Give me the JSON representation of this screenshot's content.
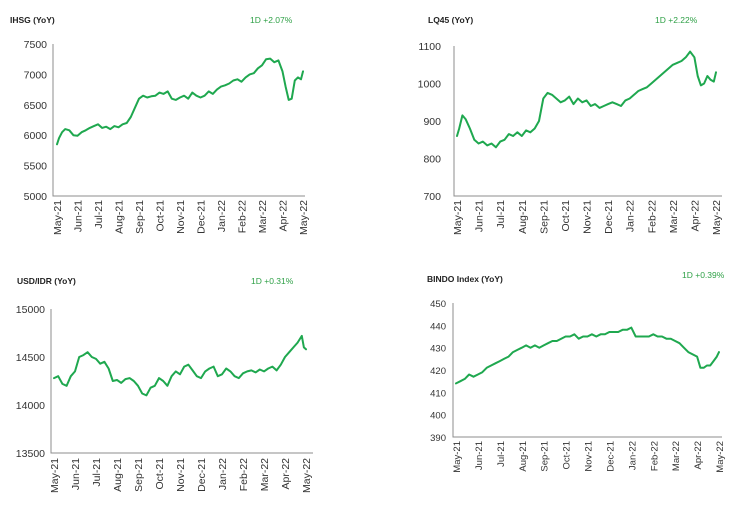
{
  "chart_data": [
    {
      "type": "line",
      "title": "IHSG (YoY)",
      "change_label": "1D +2.07%",
      "xlabel": "",
      "ylabel": "",
      "ylim": [
        5000,
        7500
      ],
      "yticks": [
        "7500",
        "7000",
        "6500",
        "6000",
        "5500",
        "5000"
      ],
      "yticks_values": [
        7500,
        7000,
        6500,
        6000,
        5500,
        5000
      ],
      "categories": [
        "May-21",
        "Jun-21",
        "Jul-21",
        "Aug-21",
        "Sep-21",
        "Oct-21",
        "Nov-21",
        "Dec-21",
        "Jan-22",
        "Feb-22",
        "Mar-22",
        "Apr-22",
        "May-22"
      ],
      "color": "#1fa84f",
      "grid": false,
      "series": [
        {
          "x": [
            0,
            0.1,
            0.25,
            0.4,
            0.6,
            0.8,
            1.0,
            1.2,
            1.4,
            1.6,
            1.8,
            2.0,
            2.2,
            2.4,
            2.6,
            2.8,
            3.0,
            3.2,
            3.4,
            3.6,
            3.8,
            4.0,
            4.2,
            4.4,
            4.6,
            4.8,
            5.0,
            5.2,
            5.4,
            5.6,
            5.8,
            6.0,
            6.2,
            6.4,
            6.6,
            6.8,
            7.0,
            7.2,
            7.4,
            7.6,
            7.8,
            8.0,
            8.2,
            8.4,
            8.6,
            8.8,
            9.0,
            9.2,
            9.4,
            9.6,
            9.8,
            10.0,
            10.2,
            10.4,
            10.6,
            10.8,
            11.0,
            11.15,
            11.3,
            11.45,
            11.6,
            11.75,
            11.9,
            12.0
          ],
          "values": [
            5850,
            5950,
            6050,
            6100,
            6080,
            6000,
            5990,
            6050,
            6080,
            6120,
            6150,
            6180,
            6120,
            6140,
            6100,
            6150,
            6130,
            6180,
            6200,
            6300,
            6450,
            6600,
            6650,
            6620,
            6640,
            6650,
            6700,
            6680,
            6720,
            6600,
            6580,
            6620,
            6650,
            6600,
            6700,
            6650,
            6620,
            6650,
            6720,
            6680,
            6750,
            6800,
            6820,
            6850,
            6900,
            6920,
            6880,
            6950,
            7000,
            7020,
            7100,
            7150,
            7250,
            7260,
            7200,
            7230,
            7050,
            6800,
            6580,
            6600,
            6900,
            6950,
            6920,
            7050
          ]
        }
      ]
    },
    {
      "type": "line",
      "title": "LQ45 (YoY)",
      "change_label": "1D +2.22%",
      "xlabel": "",
      "ylabel": "",
      "ylim": [
        700,
        1100
      ],
      "yticks": [
        "1100",
        "1000",
        "900",
        "800",
        "700"
      ],
      "yticks_values": [
        1100,
        1000,
        900,
        800,
        700
      ],
      "categories": [
        "May-21",
        "Jun-21",
        "Jul-21",
        "Aug-21",
        "Sep-21",
        "Oct-21",
        "Nov-21",
        "Dec-21",
        "Jan-22",
        "Feb-22",
        "Mar-22",
        "Apr-22",
        "May-22"
      ],
      "color": "#1fa84f",
      "grid": false,
      "series": [
        {
          "x": [
            0,
            0.1,
            0.25,
            0.4,
            0.6,
            0.8,
            1.0,
            1.2,
            1.4,
            1.6,
            1.8,
            2.0,
            2.2,
            2.4,
            2.6,
            2.8,
            3.0,
            3.2,
            3.4,
            3.6,
            3.8,
            4.0,
            4.2,
            4.4,
            4.6,
            4.8,
            5.0,
            5.2,
            5.4,
            5.6,
            5.8,
            6.0,
            6.2,
            6.4,
            6.6,
            6.8,
            7.0,
            7.2,
            7.4,
            7.6,
            7.8,
            8.0,
            8.2,
            8.4,
            8.6,
            8.8,
            9.0,
            9.2,
            9.4,
            9.6,
            9.8,
            10.0,
            10.2,
            10.4,
            10.6,
            10.8,
            11.0,
            11.15,
            11.3,
            11.45,
            11.6,
            11.75,
            11.9,
            12.0
          ],
          "values": [
            860,
            880,
            915,
            905,
            880,
            850,
            840,
            845,
            835,
            840,
            830,
            845,
            850,
            865,
            860,
            870,
            860,
            875,
            870,
            880,
            900,
            960,
            975,
            970,
            960,
            950,
            955,
            965,
            945,
            960,
            950,
            955,
            940,
            945,
            935,
            940,
            945,
            950,
            945,
            940,
            955,
            960,
            970,
            980,
            985,
            990,
            1000,
            1010,
            1020,
            1030,
            1040,
            1050,
            1055,
            1060,
            1070,
            1085,
            1070,
            1020,
            995,
            1000,
            1020,
            1010,
            1005,
            1030
          ]
        }
      ]
    },
    {
      "type": "line",
      "title": "USD/IDR  (YoY)",
      "change_label": "1D +0.31%",
      "xlabel": "",
      "ylabel": "",
      "ylim": [
        13500,
        15000
      ],
      "yticks": [
        "15000",
        "14500",
        "14000",
        "13500"
      ],
      "yticks_values": [
        15000,
        14500,
        14000,
        13500
      ],
      "categories": [
        "May-21",
        "Jun-21",
        "Jul-21",
        "Aug-21",
        "Sep-21",
        "Oct-21",
        "Nov-21",
        "Dec-21",
        "Jan-22",
        "Feb-22",
        "Mar-22",
        "Apr-22",
        "May-22"
      ],
      "color": "#1fa84f",
      "grid": false,
      "series": [
        {
          "x": [
            0,
            0.2,
            0.4,
            0.6,
            0.8,
            1.0,
            1.2,
            1.4,
            1.6,
            1.8,
            2.0,
            2.2,
            2.4,
            2.6,
            2.8,
            3.0,
            3.2,
            3.4,
            3.6,
            3.8,
            4.0,
            4.2,
            4.4,
            4.6,
            4.8,
            5.0,
            5.2,
            5.4,
            5.6,
            5.8,
            6.0,
            6.2,
            6.4,
            6.6,
            6.8,
            7.0,
            7.2,
            7.4,
            7.6,
            7.8,
            8.0,
            8.2,
            8.4,
            8.6,
            8.8,
            9.0,
            9.2,
            9.4,
            9.6,
            9.8,
            10.0,
            10.2,
            10.4,
            10.6,
            10.8,
            11.0,
            11.2,
            11.4,
            11.6,
            11.8,
            11.9,
            12.0
          ],
          "values": [
            14280,
            14300,
            14220,
            14200,
            14300,
            14350,
            14500,
            14520,
            14550,
            14500,
            14480,
            14430,
            14450,
            14380,
            14250,
            14260,
            14230,
            14270,
            14280,
            14250,
            14200,
            14120,
            14100,
            14180,
            14200,
            14280,
            14250,
            14200,
            14300,
            14350,
            14320,
            14400,
            14420,
            14360,
            14300,
            14280,
            14350,
            14380,
            14400,
            14300,
            14320,
            14380,
            14350,
            14300,
            14280,
            14330,
            14350,
            14360,
            14340,
            14370,
            14350,
            14380,
            14400,
            14360,
            14420,
            14500,
            14550,
            14600,
            14650,
            14720,
            14600,
            14580
          ]
        }
      ]
    },
    {
      "type": "line",
      "title": "BINDO Index (YoY)",
      "change_label": "1D +0.39%",
      "xlabel": "",
      "ylabel": "",
      "ylim": [
        390,
        450
      ],
      "yticks": [
        "450",
        "440",
        "430",
        "420",
        "410",
        "400",
        "390"
      ],
      "yticks_values": [
        450,
        440,
        430,
        420,
        410,
        400,
        390
      ],
      "categories": [
        "May-21",
        "Jun-21",
        "Jul-21",
        "Aug-21",
        "Sep-21",
        "Oct-21",
        "Nov-21",
        "Dec-21",
        "Jan-22",
        "Feb-22",
        "Mar-22",
        "Apr-22",
        "May-22"
      ],
      "color": "#1fa84f",
      "grid": false,
      "series": [
        {
          "x": [
            0,
            0.2,
            0.4,
            0.6,
            0.8,
            1.0,
            1.2,
            1.4,
            1.6,
            1.8,
            2.0,
            2.2,
            2.4,
            2.6,
            2.8,
            3.0,
            3.2,
            3.4,
            3.6,
            3.8,
            4.0,
            4.2,
            4.4,
            4.6,
            4.8,
            5.0,
            5.2,
            5.4,
            5.6,
            5.8,
            6.0,
            6.2,
            6.4,
            6.6,
            6.8,
            7.0,
            7.2,
            7.4,
            7.6,
            7.8,
            8.0,
            8.2,
            8.4,
            8.6,
            8.8,
            9.0,
            9.2,
            9.4,
            9.6,
            9.8,
            10.0,
            10.2,
            10.4,
            10.6,
            10.8,
            11.0,
            11.15,
            11.3,
            11.45,
            11.6,
            11.75,
            11.9,
            12.0
          ],
          "values": [
            414,
            415,
            416,
            418,
            417,
            418,
            419,
            421,
            422,
            423,
            424,
            425,
            426,
            428,
            429,
            430,
            431,
            430,
            431,
            430,
            431,
            432,
            433,
            433,
            434,
            435,
            435,
            436,
            434,
            435,
            435,
            436,
            435,
            436,
            436,
            437,
            437,
            437,
            438,
            438,
            439,
            435,
            435,
            435,
            435,
            436,
            435,
            435,
            434,
            434,
            433,
            432,
            430,
            428,
            427,
            426,
            421,
            421,
            422,
            422,
            424,
            426,
            428
          ]
        }
      ]
    }
  ]
}
